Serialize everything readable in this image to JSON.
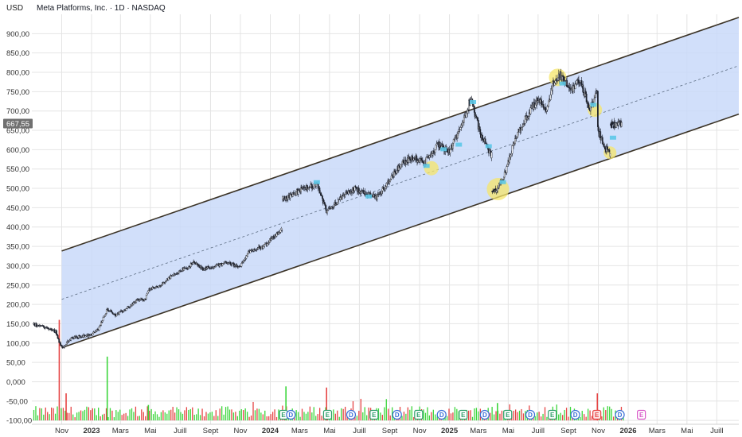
{
  "header": {
    "title": "Meta Platforms, Inc. · 1D · NASDAQ",
    "currency": "USD"
  },
  "colors": {
    "channel_fill": "#c9d9f9",
    "channel_line": "#3b3326",
    "median_line": "#5b6b80",
    "candle": "#1e222d",
    "vol_up": "#3cd63c",
    "vol_down": "#e64545",
    "highlight": "#f5e66a",
    "grid": "#e4e4e4",
    "price_badge": "#707070",
    "earnings": "#2e9e6b",
    "dividend": "#3a6fd8",
    "earnings_future": "#d957c8"
  },
  "chart_data": {
    "type": "candlestick",
    "y_axis": {
      "ticks": [
        "900,00",
        "850,00",
        "800,00",
        "750,00",
        "700,00",
        "650,00",
        "600,00",
        "550,00",
        "500,00",
        "450,00",
        "400,00",
        "350,00",
        "300,00",
        "250,00",
        "200,00",
        "150,00",
        "100,00",
        "50,00",
        "0,000",
        "-50,00",
        "-100,00"
      ],
      "tick_values": [
        900,
        850,
        800,
        750,
        700,
        650,
        600,
        550,
        500,
        450,
        400,
        350,
        300,
        250,
        200,
        150,
        100,
        50,
        0,
        -50,
        -100
      ],
      "range": [
        -110,
        950
      ]
    },
    "x_axis": {
      "labels": [
        {
          "label": "Nov",
          "date": "2022-11-01",
          "bold": false
        },
        {
          "label": "2023",
          "date": "2023-01-01",
          "bold": true
        },
        {
          "label": "Mars",
          "date": "2023-03-01",
          "bold": false
        },
        {
          "label": "Mai",
          "date": "2023-05-01",
          "bold": false
        },
        {
          "label": "Juill",
          "date": "2023-07-01",
          "bold": false
        },
        {
          "label": "Sept",
          "date": "2023-09-01",
          "bold": false
        },
        {
          "label": "Nov",
          "date": "2023-11-01",
          "bold": false
        },
        {
          "label": "2024",
          "date": "2024-01-01",
          "bold": true
        },
        {
          "label": "Mars",
          "date": "2024-03-01",
          "bold": false
        },
        {
          "label": "Mai",
          "date": "2024-05-01",
          "bold": false
        },
        {
          "label": "Juill",
          "date": "2024-07-01",
          "bold": false
        },
        {
          "label": "Sept",
          "date": "2024-09-01",
          "bold": false
        },
        {
          "label": "Nov",
          "date": "2024-11-01",
          "bold": false
        },
        {
          "label": "2025",
          "date": "2025-01-01",
          "bold": true
        },
        {
          "label": "Mars",
          "date": "2025-03-01",
          "bold": false
        },
        {
          "label": "Mai",
          "date": "2025-05-01",
          "bold": false
        },
        {
          "label": "Juill",
          "date": "2025-07-01",
          "bold": false
        },
        {
          "label": "Sept",
          "date": "2025-09-01",
          "bold": false
        },
        {
          "label": "Nov",
          "date": "2025-11-01",
          "bold": false
        },
        {
          "label": "2026",
          "date": "2026-01-01",
          "bold": true
        },
        {
          "label": "Mars",
          "date": "2026-03-01",
          "bold": false
        },
        {
          "label": "Mai",
          "date": "2026-05-01",
          "bold": false
        },
        {
          "label": "Juill",
          "date": "2026-07-01",
          "bold": false
        }
      ]
    },
    "current_price": {
      "label": "667,55",
      "value": 667.55
    },
    "channel": {
      "start_date": "2022-11-01",
      "end_date": "2026-08-15",
      "upper": [
        338,
        942
      ],
      "lower": [
        88,
        692
      ],
      "median": [
        213,
        817
      ]
    },
    "price_path": [
      {
        "date": "2022-09-05",
        "price": 148
      },
      {
        "date": "2022-09-20",
        "price": 144
      },
      {
        "date": "2022-10-05",
        "price": 137
      },
      {
        "date": "2022-10-20",
        "price": 130
      },
      {
        "date": "2022-10-28",
        "price": 99
      },
      {
        "date": "2022-11-04",
        "price": 90
      },
      {
        "date": "2022-11-20",
        "price": 112
      },
      {
        "date": "2022-12-10",
        "price": 118
      },
      {
        "date": "2022-12-30",
        "price": 120
      },
      {
        "date": "2023-01-15",
        "price": 136
      },
      {
        "date": "2023-02-02",
        "price": 188
      },
      {
        "date": "2023-02-20",
        "price": 172
      },
      {
        "date": "2023-03-10",
        "price": 186
      },
      {
        "date": "2023-04-05",
        "price": 212
      },
      {
        "date": "2023-04-20",
        "price": 212
      },
      {
        "date": "2023-04-27",
        "price": 238
      },
      {
        "date": "2023-05-20",
        "price": 247
      },
      {
        "date": "2023-06-10",
        "price": 270
      },
      {
        "date": "2023-06-30",
        "price": 287
      },
      {
        "date": "2023-07-20",
        "price": 296
      },
      {
        "date": "2023-07-27",
        "price": 312
      },
      {
        "date": "2023-08-15",
        "price": 292
      },
      {
        "date": "2023-09-10",
        "price": 298
      },
      {
        "date": "2023-10-05",
        "price": 310
      },
      {
        "date": "2023-10-30",
        "price": 295
      },
      {
        "date": "2023-11-20",
        "price": 338
      },
      {
        "date": "2023-12-20",
        "price": 352
      },
      {
        "date": "2024-01-25",
        "price": 395
      },
      {
        "date": "2024-02-02",
        "price": 475
      },
      {
        "date": "2024-03-01",
        "price": 495
      },
      {
        "date": "2024-04-05",
        "price": 510
      },
      {
        "date": "2024-04-25",
        "price": 441
      },
      {
        "date": "2024-05-20",
        "price": 470
      },
      {
        "date": "2024-06-20",
        "price": 500
      },
      {
        "date": "2024-07-15",
        "price": 485
      },
      {
        "date": "2024-08-05",
        "price": 475
      },
      {
        "date": "2024-08-30",
        "price": 520
      },
      {
        "date": "2024-09-25",
        "price": 565
      },
      {
        "date": "2024-10-20",
        "price": 580
      },
      {
        "date": "2024-11-10",
        "price": 565
      },
      {
        "date": "2024-12-10",
        "price": 615
      },
      {
        "date": "2025-01-01",
        "price": 595
      },
      {
        "date": "2025-01-25",
        "price": 660
      },
      {
        "date": "2025-02-14",
        "price": 735
      },
      {
        "date": "2025-03-05",
        "price": 640
      },
      {
        "date": "2025-03-28",
        "price": 585
      },
      {
        "date": "2025-04-08",
        "price": 495
      },
      {
        "date": "2025-04-25",
        "price": 540
      },
      {
        "date": "2025-05-15",
        "price": 630
      },
      {
        "date": "2025-06-10",
        "price": 690
      },
      {
        "date": "2025-07-01",
        "price": 730
      },
      {
        "date": "2025-07-20",
        "price": 705
      },
      {
        "date": "2025-08-01",
        "price": 770
      },
      {
        "date": "2025-08-15",
        "price": 790
      },
      {
        "date": "2025-09-05",
        "price": 755
      },
      {
        "date": "2025-09-25",
        "price": 780
      },
      {
        "date": "2025-10-15",
        "price": 705
      },
      {
        "date": "2025-10-29",
        "price": 750
      },
      {
        "date": "2025-10-31",
        "price": 650
      },
      {
        "date": "2025-11-15",
        "price": 605
      },
      {
        "date": "2025-11-25",
        "price": 590
      },
      {
        "date": "2025-12-05",
        "price": 665
      },
      {
        "date": "2025-12-20",
        "price": 667.55
      }
    ],
    "highlights": [
      {
        "date": "2024-11-25",
        "price": 552,
        "r": 9
      },
      {
        "date": "2025-04-10",
        "price": 498,
        "r": 14
      },
      {
        "date": "2025-08-10",
        "price": 787,
        "r": 11
      },
      {
        "date": "2025-10-25",
        "price": 703,
        "r": 9
      },
      {
        "date": "2025-11-25",
        "price": 592,
        "r": 8
      }
    ],
    "events": [
      {
        "date": "2024-01-28",
        "type": "earnings",
        "label": "E"
      },
      {
        "date": "2024-02-12",
        "type": "dividend",
        "label": "D"
      },
      {
        "date": "2024-04-27",
        "type": "earnings",
        "label": "E"
      },
      {
        "date": "2024-06-14",
        "type": "dividend",
        "label": "D"
      },
      {
        "date": "2024-07-31",
        "type": "earnings",
        "label": "E"
      },
      {
        "date": "2024-09-16",
        "type": "dividend",
        "label": "D"
      },
      {
        "date": "2024-10-30",
        "type": "earnings",
        "label": "E"
      },
      {
        "date": "2024-12-16",
        "type": "dividend",
        "label": "D"
      },
      {
        "date": "2025-01-29",
        "type": "earnings",
        "label": "E"
      },
      {
        "date": "2025-03-14",
        "type": "dividend",
        "label": "D"
      },
      {
        "date": "2025-04-30",
        "type": "earnings",
        "label": "E"
      },
      {
        "date": "2025-06-15",
        "type": "dividend",
        "label": "D"
      },
      {
        "date": "2025-07-30",
        "type": "earnings",
        "label": "E"
      },
      {
        "date": "2025-09-15",
        "type": "dividend",
        "label": "D"
      },
      {
        "date": "2025-10-29",
        "type": "earnings_red",
        "label": "E"
      },
      {
        "date": "2025-12-15",
        "type": "dividend",
        "label": "D"
      },
      {
        "date": "2026-01-28",
        "type": "earnings_future",
        "label": "E"
      }
    ],
    "volume_spikes": [
      {
        "date": "2022-10-27",
        "value": 160,
        "dir": "down"
      },
      {
        "date": "2022-11-10",
        "value": -30,
        "dir": "down"
      },
      {
        "date": "2023-02-02",
        "value": 65,
        "dir": "up"
      },
      {
        "date": "2023-04-27",
        "value": -60,
        "dir": "up"
      },
      {
        "date": "2024-02-02",
        "value": -12,
        "dir": "up"
      },
      {
        "date": "2024-04-25",
        "value": -15,
        "dir": "down"
      },
      {
        "date": "2025-04-09",
        "value": -55,
        "dir": "up"
      },
      {
        "date": "2025-10-30",
        "value": -30,
        "dir": "down"
      }
    ]
  }
}
